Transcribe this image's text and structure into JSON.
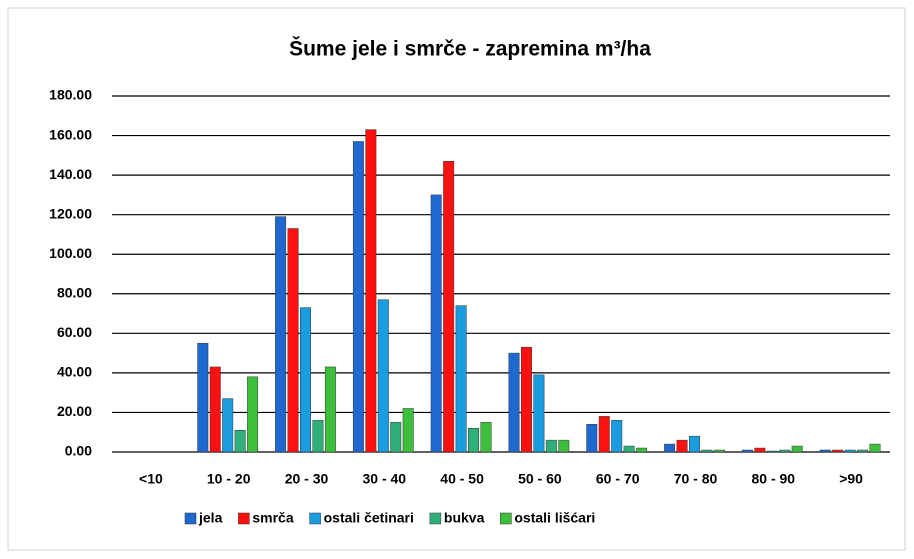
{
  "chart_data": {
    "type": "bar",
    "title": "Šume jele i smrče - zapremina m³/ha",
    "categories": [
      "<10",
      "10 - 20",
      "20 - 30",
      "30 - 40",
      "40 - 50",
      "50 - 60",
      "60 - 70",
      "70 - 80",
      "80 - 90",
      ">90"
    ],
    "series": [
      {
        "name": "jela",
        "color": "#1f68d0",
        "values": [
          0,
          55,
          119,
          157,
          130,
          50,
          14,
          4,
          1,
          1
        ]
      },
      {
        "name": "smrča",
        "color": "#ff1010",
        "values": [
          0,
          43,
          113,
          163,
          147,
          53,
          18,
          6,
          2,
          1
        ]
      },
      {
        "name": "ostali četinari",
        "color": "#1a9ce0",
        "values": [
          0,
          27,
          73,
          77,
          74,
          39,
          16,
          8,
          0.5,
          1
        ]
      },
      {
        "name": "bukva",
        "color": "#2fb07a",
        "values": [
          0,
          11,
          16,
          15,
          12,
          6,
          3,
          1,
          1,
          1
        ]
      },
      {
        "name": "ostali lišćari",
        "color": "#3cc03c",
        "values": [
          0,
          38,
          43,
          22,
          15,
          6,
          2,
          1,
          3,
          4
        ]
      }
    ],
    "ylim": [
      0,
      180
    ],
    "yticks": [
      {
        "value": 0,
        "label": "0.00"
      },
      {
        "value": 20,
        "label": "20.00"
      },
      {
        "value": 40,
        "label": "40.00"
      },
      {
        "value": 60,
        "label": "60.00"
      },
      {
        "value": 80,
        "label": "80.00"
      },
      {
        "value": 100,
        "label": "100.00"
      },
      {
        "value": 120,
        "label": "120.00"
      },
      {
        "value": 140,
        "label": "140.00"
      },
      {
        "value": 160,
        "label": "160.00"
      },
      {
        "value": 180,
        "label": "180.00"
      }
    ],
    "grid": true,
    "legend": "bottom"
  }
}
